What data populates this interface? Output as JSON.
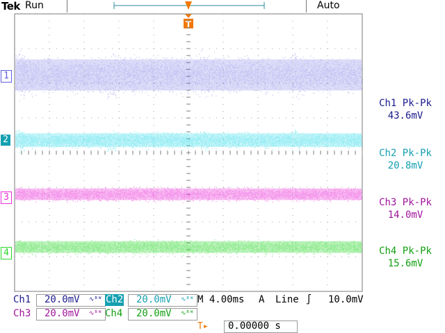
{
  "header": {
    "brand": "Tek",
    "run_state": "Run",
    "trigger_mode": "Auto",
    "trigger_marker": "T"
  },
  "channels": [
    {
      "id": "ch1",
      "marker": "1",
      "meas_title": "Ch1 Pk-Pk",
      "meas_value": "43.6mV",
      "color": "#5c5ce0"
    },
    {
      "id": "ch2",
      "marker": "2",
      "meas_title": "Ch2 Pk-Pk",
      "meas_value": "20.8mV",
      "color": "#22d8e8"
    },
    {
      "id": "ch3",
      "marker": "3",
      "meas_title": "Ch3 Pk-Pk",
      "meas_value": "14.0mV",
      "color": "#ea2ed8"
    },
    {
      "id": "ch4",
      "marker": "4",
      "meas_title": "Ch4 Pk-Pk",
      "meas_value": "15.6mV",
      "color": "#2ad82a"
    }
  ],
  "status": {
    "ch1_label": "Ch1",
    "ch1_scale": "20.0mV",
    "ch2_label": "Ch2",
    "ch2_scale": "20.0mV",
    "ch3_label": "Ch3",
    "ch3_scale": "20.0mV",
    "ch4_label": "Ch4",
    "ch4_scale": "20.0mV",
    "bw_symbol": "∿ᴮᵂ",
    "timebase": "M 4.00ms",
    "trigger_source_label": "A",
    "trigger_source": "Line",
    "trigger_slope": "∫",
    "trigger_level": "10.0mV",
    "trigger_position": "0.00000 s",
    "trigger_pos_icon": "T▸"
  },
  "colors": {
    "ch1_text": "#1a1a8c",
    "ch2_text": "#14a0b0",
    "ch3_text": "#a0149c",
    "ch4_text": "#12a012",
    "trigger": "#f07800",
    "grid": "#a0a0a0"
  }
}
